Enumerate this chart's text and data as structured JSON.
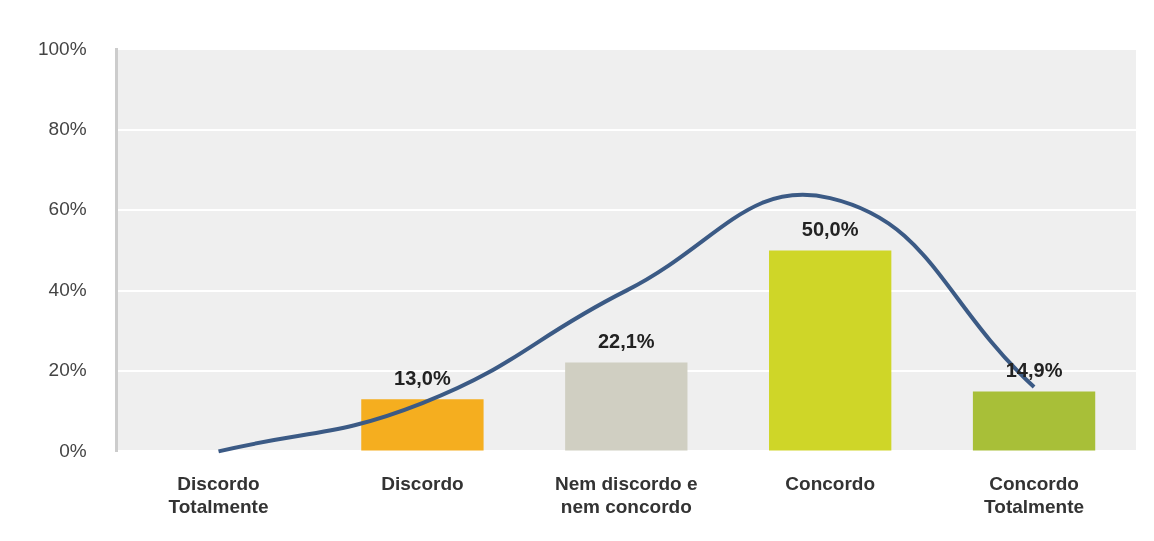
{
  "chart_data": {
    "type": "bar",
    "categories": [
      "Discordo Totalmente",
      "Discordo",
      "Nem discordo e nem concordo",
      "Concordo",
      "Concordo Totalmente"
    ],
    "series": [
      {
        "values": [
          0,
          13,
          22.1,
          50,
          14.9
        ],
        "colors": [
          "#f5ae1f",
          "#f5ae1f",
          "#d0cfc2",
          "#cfd628",
          "#a8bf38"
        ],
        "value_labels": [
          null,
          "13,0%",
          "22,1%",
          "50,0%",
          "14,9%"
        ]
      },
      {
        "type": "line",
        "color": "#3b5a85",
        "values": [
          0,
          12,
          40,
          63,
          16
        ],
        "marker": "none"
      }
    ],
    "ylim": [
      0,
      100
    ],
    "yticks": [
      {
        "value": 0,
        "label": "0%"
      },
      {
        "value": 20,
        "label": "20%"
      },
      {
        "value": 40,
        "label": "40%"
      },
      {
        "value": 60,
        "label": "60%"
      },
      {
        "value": 80,
        "label": "80%"
      },
      {
        "value": 100,
        "label": "100%"
      }
    ],
    "grid": "y",
    "legend": false
  }
}
